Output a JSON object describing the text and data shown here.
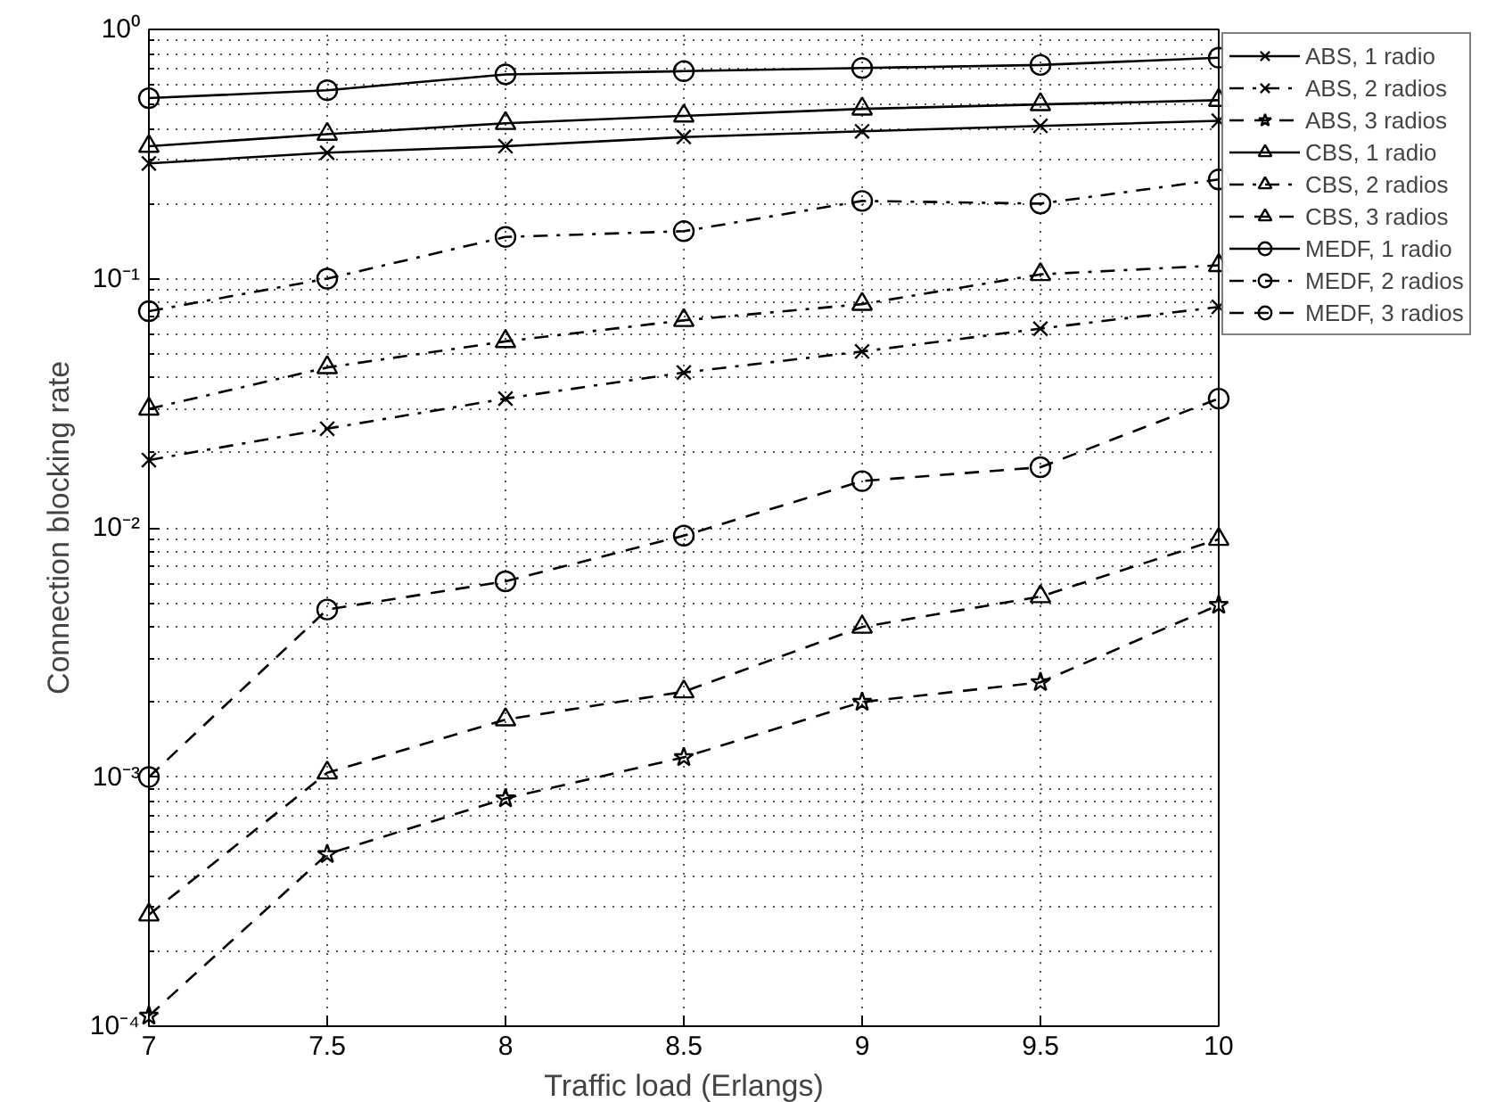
{
  "chart_data": {
    "type": "line",
    "xlabel": "Traffic load (Erlangs)",
    "ylabel": "Connection blocking rate",
    "log": "y",
    "grid": true,
    "legend": "top right",
    "xlim": [
      7,
      10
    ],
    "ylim": [
      0.0001,
      1
    ],
    "xticks": [
      7,
      7.5,
      8,
      8.5,
      9,
      9.5,
      10
    ],
    "yticks": [
      {
        "value": 0.0001,
        "label": "10⁻⁴"
      },
      {
        "value": 0.001,
        "label": "10⁻³"
      },
      {
        "value": 0.01,
        "label": "10⁻²"
      },
      {
        "value": 0.1,
        "label": "10⁻¹"
      },
      {
        "value": 1,
        "label": "10⁰"
      }
    ],
    "x": [
      7,
      7.5,
      8,
      8.5,
      9,
      9.5,
      10
    ],
    "series": [
      {
        "name": "ABS, 1 radio",
        "color": "#000000",
        "marker": "cross",
        "line_style": "solid",
        "values": [
          0.29,
          0.32,
          0.34,
          0.37,
          0.39,
          0.41,
          0.43
        ]
      },
      {
        "name": "ABS, 2 radios",
        "color": "#000000",
        "marker": "cross",
        "line_style": "dashdot",
        "values": [
          0.0187,
          0.025,
          0.033,
          0.042,
          0.051,
          0.063,
          0.077
        ]
      },
      {
        "name": "ABS, 3 radios",
        "color": "#000000",
        "marker": "star",
        "line_style": "dashed",
        "values": [
          0.00011,
          0.00049,
          0.00082,
          0.0012,
          0.002,
          0.0024,
          0.0049
        ]
      },
      {
        "name": "CBS, 1 radio",
        "color": "#000000",
        "marker": "triangle",
        "line_style": "solid",
        "values": [
          0.34,
          0.38,
          0.42,
          0.45,
          0.48,
          0.5,
          0.52
        ]
      },
      {
        "name": "CBS, 2 radios",
        "color": "#000000",
        "marker": "triangle",
        "line_style": "dashdot",
        "values": [
          0.03,
          0.044,
          0.056,
          0.068,
          0.079,
          0.104,
          0.113
        ]
      },
      {
        "name": "CBS, 3 radios",
        "color": "#000000",
        "marker": "triangle",
        "line_style": "dashed",
        "values": [
          0.00028,
          0.00104,
          0.0017,
          0.0022,
          0.004,
          0.0053,
          0.009
        ]
      },
      {
        "name": "MEDF, 1 radio",
        "color": "#000000",
        "marker": "circle",
        "line_style": "solid",
        "values": [
          0.53,
          0.57,
          0.66,
          0.68,
          0.7,
          0.72,
          0.77
        ]
      },
      {
        "name": "MEDF, 2 radios",
        "color": "#000000",
        "marker": "circle",
        "line_style": "dashdot",
        "values": [
          0.074,
          0.1,
          0.147,
          0.155,
          0.205,
          0.2,
          0.25
        ]
      },
      {
        "name": "MEDF, 3 radios",
        "color": "#000000",
        "marker": "circle",
        "line_style": "dashed",
        "values": [
          0.001,
          0.0047,
          0.0061,
          0.0093,
          0.0154,
          0.0175,
          0.033
        ]
      }
    ]
  }
}
